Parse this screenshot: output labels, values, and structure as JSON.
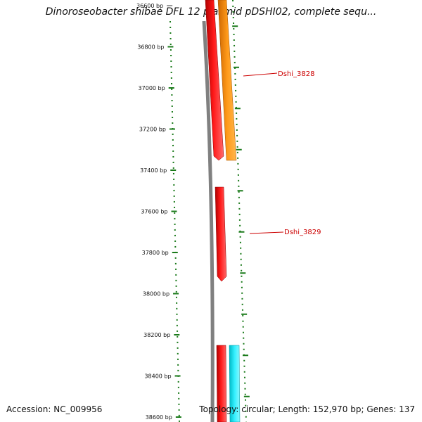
{
  "title": "Dinoroseobacter shibae DFL 12 plasmid pDSHI02, complete sequ...",
  "accession_text": "Accession: NC_009956",
  "summary_text": "Topology: circular; Length: 152,970 bp; Genes: 137",
  "scale": {
    "tick_labels": [
      "36600 bp",
      "36800 bp",
      "37000 bp",
      "37200 bp",
      "37400 bp",
      "37600 bp",
      "37800 bp",
      "38000 bp",
      "38200 bp",
      "38400 bp",
      "38600 bp"
    ],
    "tick_color": "#1a7a1a"
  },
  "gene_labels": [
    "Dshi_3828",
    "Dshi_3829"
  ],
  "colors": {
    "backbone": "#808080",
    "gene_red": "#ff0000",
    "gene_orange": "#ff8c00",
    "gene_cyan": "#00e5ee",
    "label_red": "#cc0000"
  }
}
